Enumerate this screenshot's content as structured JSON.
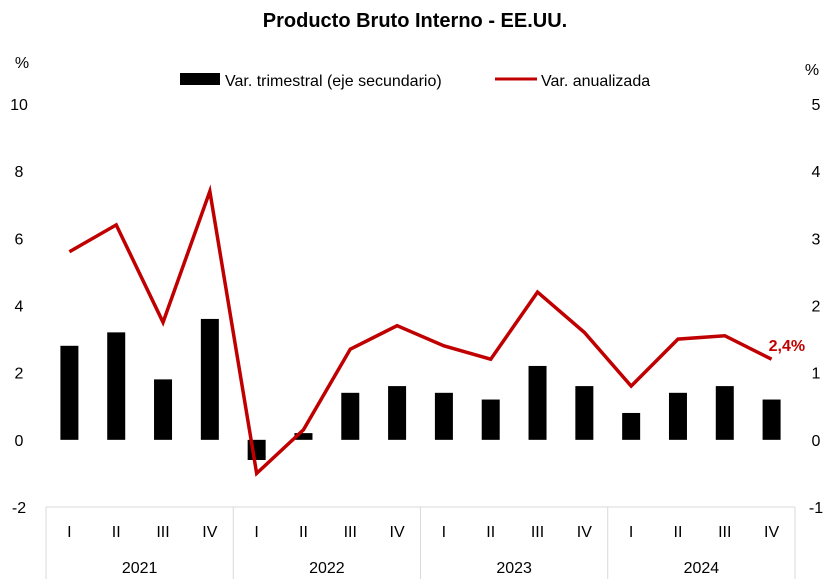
{
  "chart_data": {
    "type": "bar+line",
    "title": "Producto Bruto Interno - EE.UU.",
    "left_axis": {
      "unit": "%",
      "ylim": [
        -2,
        10
      ],
      "ticks": [
        -2,
        0,
        2,
        4,
        6,
        8,
        10
      ]
    },
    "right_axis": {
      "unit": "%",
      "ylim": [
        -1,
        5
      ],
      "ticks": [
        -1,
        0,
        1,
        2,
        3,
        4,
        5
      ]
    },
    "groups": [
      {
        "year": "2021",
        "quarters": [
          "I",
          "II",
          "III",
          "IV"
        ]
      },
      {
        "year": "2022",
        "quarters": [
          "I",
          "II",
          "III",
          "IV"
        ]
      },
      {
        "year": "2023",
        "quarters": [
          "I",
          "II",
          "III",
          "IV"
        ]
      },
      {
        "year": "2024",
        "quarters": [
          "I",
          "II",
          "III",
          "IV"
        ]
      }
    ],
    "series": [
      {
        "name": "Var. trimestral (eje secundario)",
        "kind": "bar",
        "axis": "right",
        "color": "#000000",
        "values": [
          1.4,
          1.6,
          0.9,
          1.8,
          -0.3,
          0.1,
          0.7,
          0.8,
          0.7,
          0.6,
          1.1,
          0.8,
          0.4,
          0.7,
          0.8,
          0.6
        ]
      },
      {
        "name": "Var. anualizada",
        "kind": "line",
        "axis": "left",
        "color": "#C00000",
        "values": [
          5.6,
          6.4,
          3.5,
          7.4,
          -1.0,
          0.3,
          2.7,
          3.4,
          2.8,
          2.4,
          4.4,
          3.2,
          1.6,
          3.0,
          3.1,
          2.4
        ]
      }
    ],
    "annotation": {
      "text": "2,4%",
      "point_index": 15,
      "color": "#C00000"
    },
    "legend_position": "top-center"
  }
}
